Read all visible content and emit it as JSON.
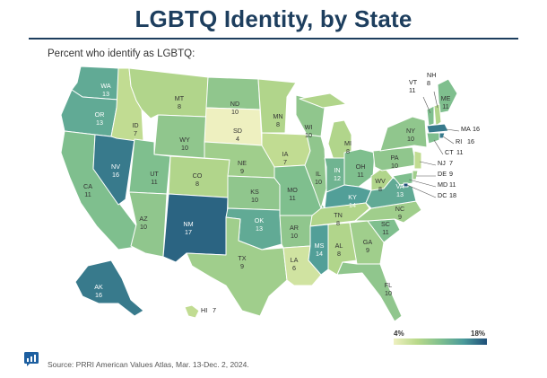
{
  "title": "LGBTQ Identity, by State",
  "subtitle": "Percent who identify as LGBTQ:",
  "source": "Source: PRRI American Values Atlas, Mar. 13-Dec. 2, 2024.",
  "legend": {
    "min_label": "4%",
    "max_label": "18%",
    "min": 4,
    "max": 18
  },
  "colors": {
    "low": "#eef0c0",
    "mid_low": "#b9d98a",
    "mid": "#7fbf8e",
    "mid_high": "#4a9a9a",
    "high": "#1f4f79"
  },
  "states": [
    {
      "abbr": "WA",
      "value": 13
    },
    {
      "abbr": "OR",
      "value": 13
    },
    {
      "abbr": "CA",
      "value": 11
    },
    {
      "abbr": "NV",
      "value": 16
    },
    {
      "abbr": "ID",
      "value": 7
    },
    {
      "abbr": "MT",
      "value": 8
    },
    {
      "abbr": "WY",
      "value": 10
    },
    {
      "abbr": "UT",
      "value": 11
    },
    {
      "abbr": "AZ",
      "value": 10
    },
    {
      "abbr": "CO",
      "value": 8
    },
    {
      "abbr": "NM",
      "value": 17
    },
    {
      "abbr": "ND",
      "value": 10
    },
    {
      "abbr": "SD",
      "value": 4
    },
    {
      "abbr": "NE",
      "value": 9
    },
    {
      "abbr": "KS",
      "value": 10
    },
    {
      "abbr": "OK",
      "value": 13
    },
    {
      "abbr": "TX",
      "value": 9
    },
    {
      "abbr": "MN",
      "value": 8
    },
    {
      "abbr": "IA",
      "value": 7
    },
    {
      "abbr": "MO",
      "value": 11
    },
    {
      "abbr": "AR",
      "value": 10
    },
    {
      "abbr": "LA",
      "value": 6
    },
    {
      "abbr": "WI",
      "value": 10
    },
    {
      "abbr": "IL",
      "value": 10
    },
    {
      "abbr": "MI",
      "value": 8
    },
    {
      "abbr": "IN",
      "value": 12
    },
    {
      "abbr": "OH",
      "value": 11
    },
    {
      "abbr": "KY",
      "value": 14
    },
    {
      "abbr": "TN",
      "value": 8
    },
    {
      "abbr": "MS",
      "value": 14
    },
    {
      "abbr": "AL",
      "value": 8
    },
    {
      "abbr": "GA",
      "value": 9
    },
    {
      "abbr": "FL",
      "value": 10
    },
    {
      "abbr": "SC",
      "value": 11
    },
    {
      "abbr": "NC",
      "value": 9
    },
    {
      "abbr": "VA",
      "value": 13
    },
    {
      "abbr": "WV",
      "value": 8
    },
    {
      "abbr": "PA",
      "value": 10
    },
    {
      "abbr": "NY",
      "value": 10
    },
    {
      "abbr": "ME",
      "value": 11
    },
    {
      "abbr": "VT",
      "value": 11
    },
    {
      "abbr": "NH",
      "value": 8
    },
    {
      "abbr": "MA",
      "value": 16
    },
    {
      "abbr": "RI",
      "value": 16
    },
    {
      "abbr": "CT",
      "value": 11
    },
    {
      "abbr": "NJ",
      "value": 7
    },
    {
      "abbr": "DE",
      "value": 9
    },
    {
      "abbr": "MD",
      "value": 11
    },
    {
      "abbr": "DC",
      "value": 18
    },
    {
      "abbr": "AK",
      "value": 16
    },
    {
      "abbr": "HI",
      "value": 7
    }
  ]
}
